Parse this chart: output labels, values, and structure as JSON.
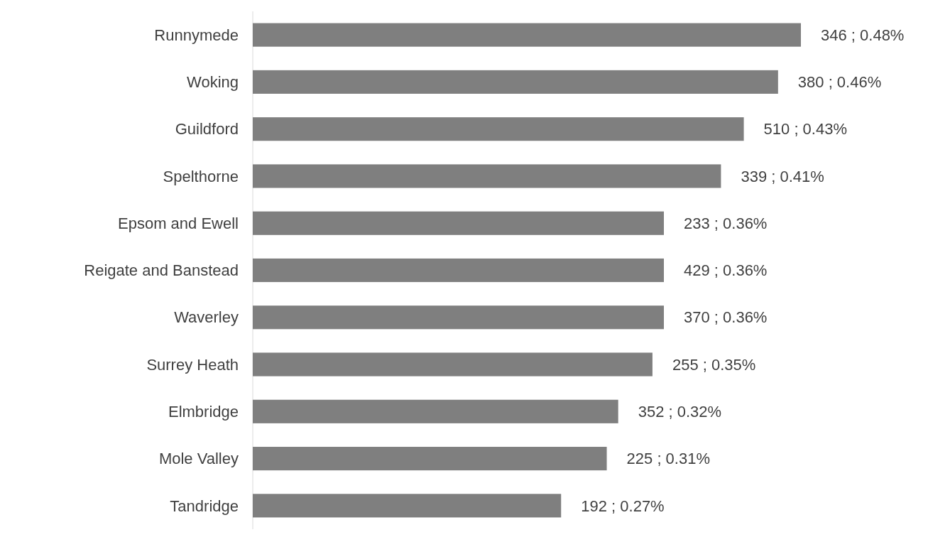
{
  "chart_data": {
    "type": "bar",
    "orientation": "horizontal",
    "categories": [
      "Runnymede",
      "Woking",
      "Guildford",
      "Spelthorne",
      "Epsom and Ewell",
      "Reigate and Banstead",
      "Waverley",
      "Surrey Heath",
      "Elmbridge",
      "Mole Valley",
      "Tandridge"
    ],
    "values": [
      0.48,
      0.46,
      0.43,
      0.41,
      0.36,
      0.36,
      0.36,
      0.35,
      0.32,
      0.31,
      0.27
    ],
    "value_labels": [
      "346 ; 0.48%",
      "380 ; 0.46%",
      "510 ; 0.43%",
      "339 ; 0.41%",
      "233 ; 0.36%",
      "429 ; 0.36%",
      "370 ; 0.36%",
      "255 ; 0.35%",
      "352 ; 0.32%",
      "225 ; 0.31%",
      "192 ; 0.27%"
    ],
    "color": "#7f7f7f"
  }
}
